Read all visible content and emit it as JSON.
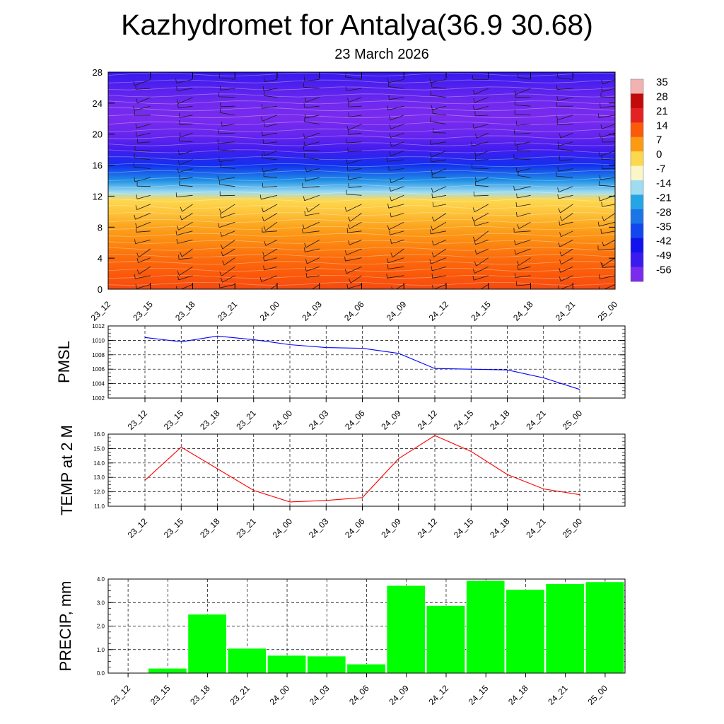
{
  "title": "Kazhydromet for Antalya(36.9 30.68)",
  "subtitle": "23 March 2026",
  "time_labels": [
    "23_12",
    "23_15",
    "23_18",
    "23_21",
    "24_00",
    "24_03",
    "24_06",
    "24_09",
    "24_12",
    "24_15",
    "24_18",
    "24_21",
    "25_00"
  ],
  "chart_data": [
    {
      "type": "heatmap",
      "name": "vertical temperature cross-section with wind barbs",
      "xlabel": "",
      "ylabel": "",
      "categories": [
        "23_12",
        "23_15",
        "23_18",
        "23_21",
        "24_00",
        "24_03",
        "24_06",
        "24_09",
        "24_12",
        "24_15",
        "24_18",
        "24_21",
        "25_00"
      ],
      "y_ticks": [
        0,
        4,
        8,
        12,
        16,
        20,
        24,
        28
      ],
      "ylim": [
        0,
        28
      ],
      "colorbar": {
        "labels": [
          "35",
          "28",
          "21",
          "14",
          "7",
          "0",
          "-7",
          "-14",
          "-21",
          "-28",
          "-35",
          "-42",
          "-49",
          "-56"
        ],
        "colors": [
          "#f2b2b2",
          "#c20a0a",
          "#e52222",
          "#fb5a0a",
          "#fc9a14",
          "#fdd84e",
          "#fbf6c8",
          "#9fdcf2",
          "#24a6e6",
          "#1a76e6",
          "#1246ee",
          "#1212ee",
          "#3a1aee",
          "#7a2bee"
        ]
      },
      "temperature_profile": {
        "heights": [
          0,
          2,
          4,
          6,
          8,
          10,
          11.5,
          12.5,
          14,
          16,
          18,
          20,
          22,
          24,
          26,
          28
        ],
        "values": [
          16,
          14,
          12,
          9,
          6,
          2,
          0,
          -14,
          -24,
          -38,
          -50,
          -54,
          -56,
          -55,
          -52,
          -48
        ]
      }
    },
    {
      "type": "line",
      "title": "",
      "ylabel": "PMSL",
      "xlabel": "",
      "categories": [
        "23_12",
        "23_15",
        "23_18",
        "23_21",
        "24_00",
        "24_03",
        "24_06",
        "24_09",
        "24_12",
        "24_15",
        "24_18",
        "24_21",
        "25_00"
      ],
      "values": [
        1010.4,
        1009.8,
        1010.6,
        1010.1,
        1009.4,
        1009.0,
        1008.9,
        1008.2,
        1006.1,
        1006.0,
        1005.9,
        1004.8,
        1003.2
      ],
      "ylim": [
        1002,
        1012
      ],
      "y_ticks": [
        "1012",
        "1010",
        "1008",
        "1006",
        "1004",
        "1002"
      ],
      "color": "#0000ff"
    },
    {
      "type": "line",
      "title": "",
      "ylabel": "TEMP at 2 M",
      "xlabel": "",
      "categories": [
        "23_12",
        "23_15",
        "23_18",
        "23_21",
        "24_00",
        "24_03",
        "24_06",
        "24_09",
        "24_12",
        "24_15",
        "24_18",
        "24_21",
        "25_00"
      ],
      "values": [
        12.8,
        15.1,
        13.6,
        12.1,
        11.3,
        11.4,
        11.6,
        14.3,
        15.9,
        14.8,
        13.2,
        12.2,
        11.8
      ],
      "ylim": [
        11,
        16
      ],
      "y_ticks": [
        "16.0",
        "15.0",
        "14.0",
        "13.0",
        "12.0",
        "11.0"
      ],
      "color": "#ff0000"
    },
    {
      "type": "bar",
      "title": "",
      "ylabel": "PRECIP, mm",
      "xlabel": "",
      "categories": [
        "23_12",
        "23_15",
        "23_18",
        "23_21",
        "24_00",
        "24_03",
        "24_06",
        "24_09",
        "24_12",
        "24_15",
        "24_18",
        "24_21",
        "25_00"
      ],
      "values": [
        0.0,
        0.2,
        2.5,
        1.05,
        0.75,
        0.72,
        0.38,
        3.72,
        2.87,
        3.93,
        3.55,
        3.8,
        3.88
      ],
      "ylim": [
        0,
        4.0
      ],
      "y_ticks": [
        "4.0",
        "3.0",
        "2.0",
        "1.0",
        "0.0"
      ],
      "color": "#00ff00"
    }
  ]
}
